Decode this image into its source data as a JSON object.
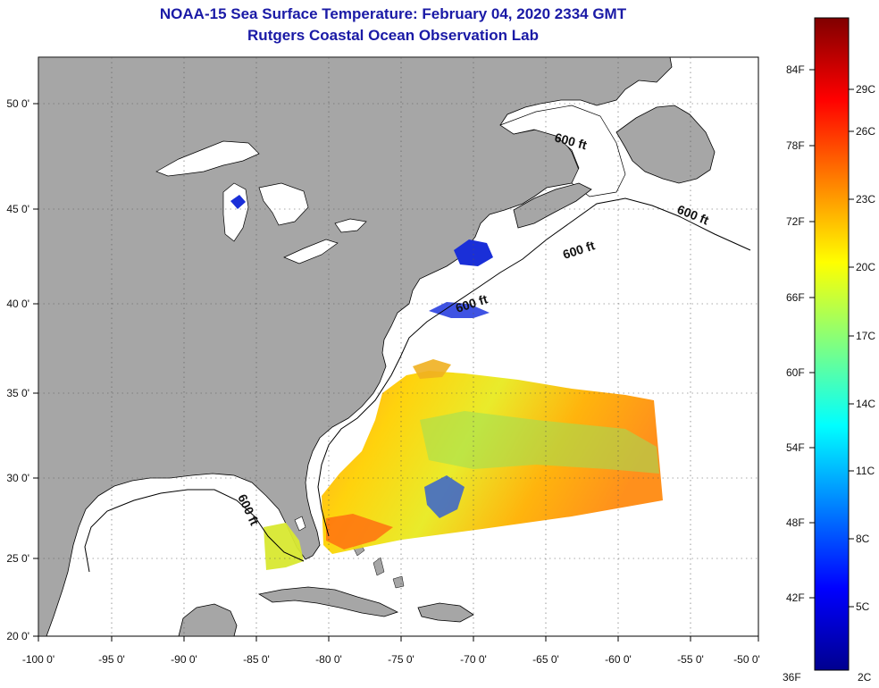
{
  "title": "NOAA-15 Sea Surface Temperature:  February 04, 2020 2334 GMT",
  "subtitle": "Rutgers Coastal Ocean Observation Lab",
  "map": {
    "lon_ticks": [
      "-100 0'",
      "-95 0'",
      "-90 0'",
      "-85 0'",
      "-80 0'",
      "-75 0'",
      "-70 0'",
      "-65 0'",
      "-60 0'",
      "-55 0'",
      "-50 0'"
    ],
    "lat_ticks": [
      "50 0'",
      "45 0'",
      "40 0'",
      "35 0'",
      "30 0'",
      "25 0'",
      "20 0'"
    ],
    "isobath_labels": [
      "600 ft",
      "600 ft",
      "600 ft",
      "600 ft",
      "600 ft"
    ],
    "land_color": "#a6a6a6",
    "ocean_color": "#ffffff"
  },
  "colorbar": {
    "f_labels": [
      "84F",
      "78F",
      "72F",
      "66F",
      "60F",
      "54F",
      "48F",
      "42F",
      "36F"
    ],
    "c_labels": [
      "29C",
      "26C",
      "23C",
      "20C",
      "17C",
      "14C",
      "11C",
      "8C",
      "5C",
      "2C"
    ],
    "colors": [
      "#00008f",
      "#0000ff",
      "#0080ff",
      "#00ffff",
      "#80ff80",
      "#ffff00",
      "#ff8000",
      "#ff0000",
      "#800000"
    ]
  }
}
